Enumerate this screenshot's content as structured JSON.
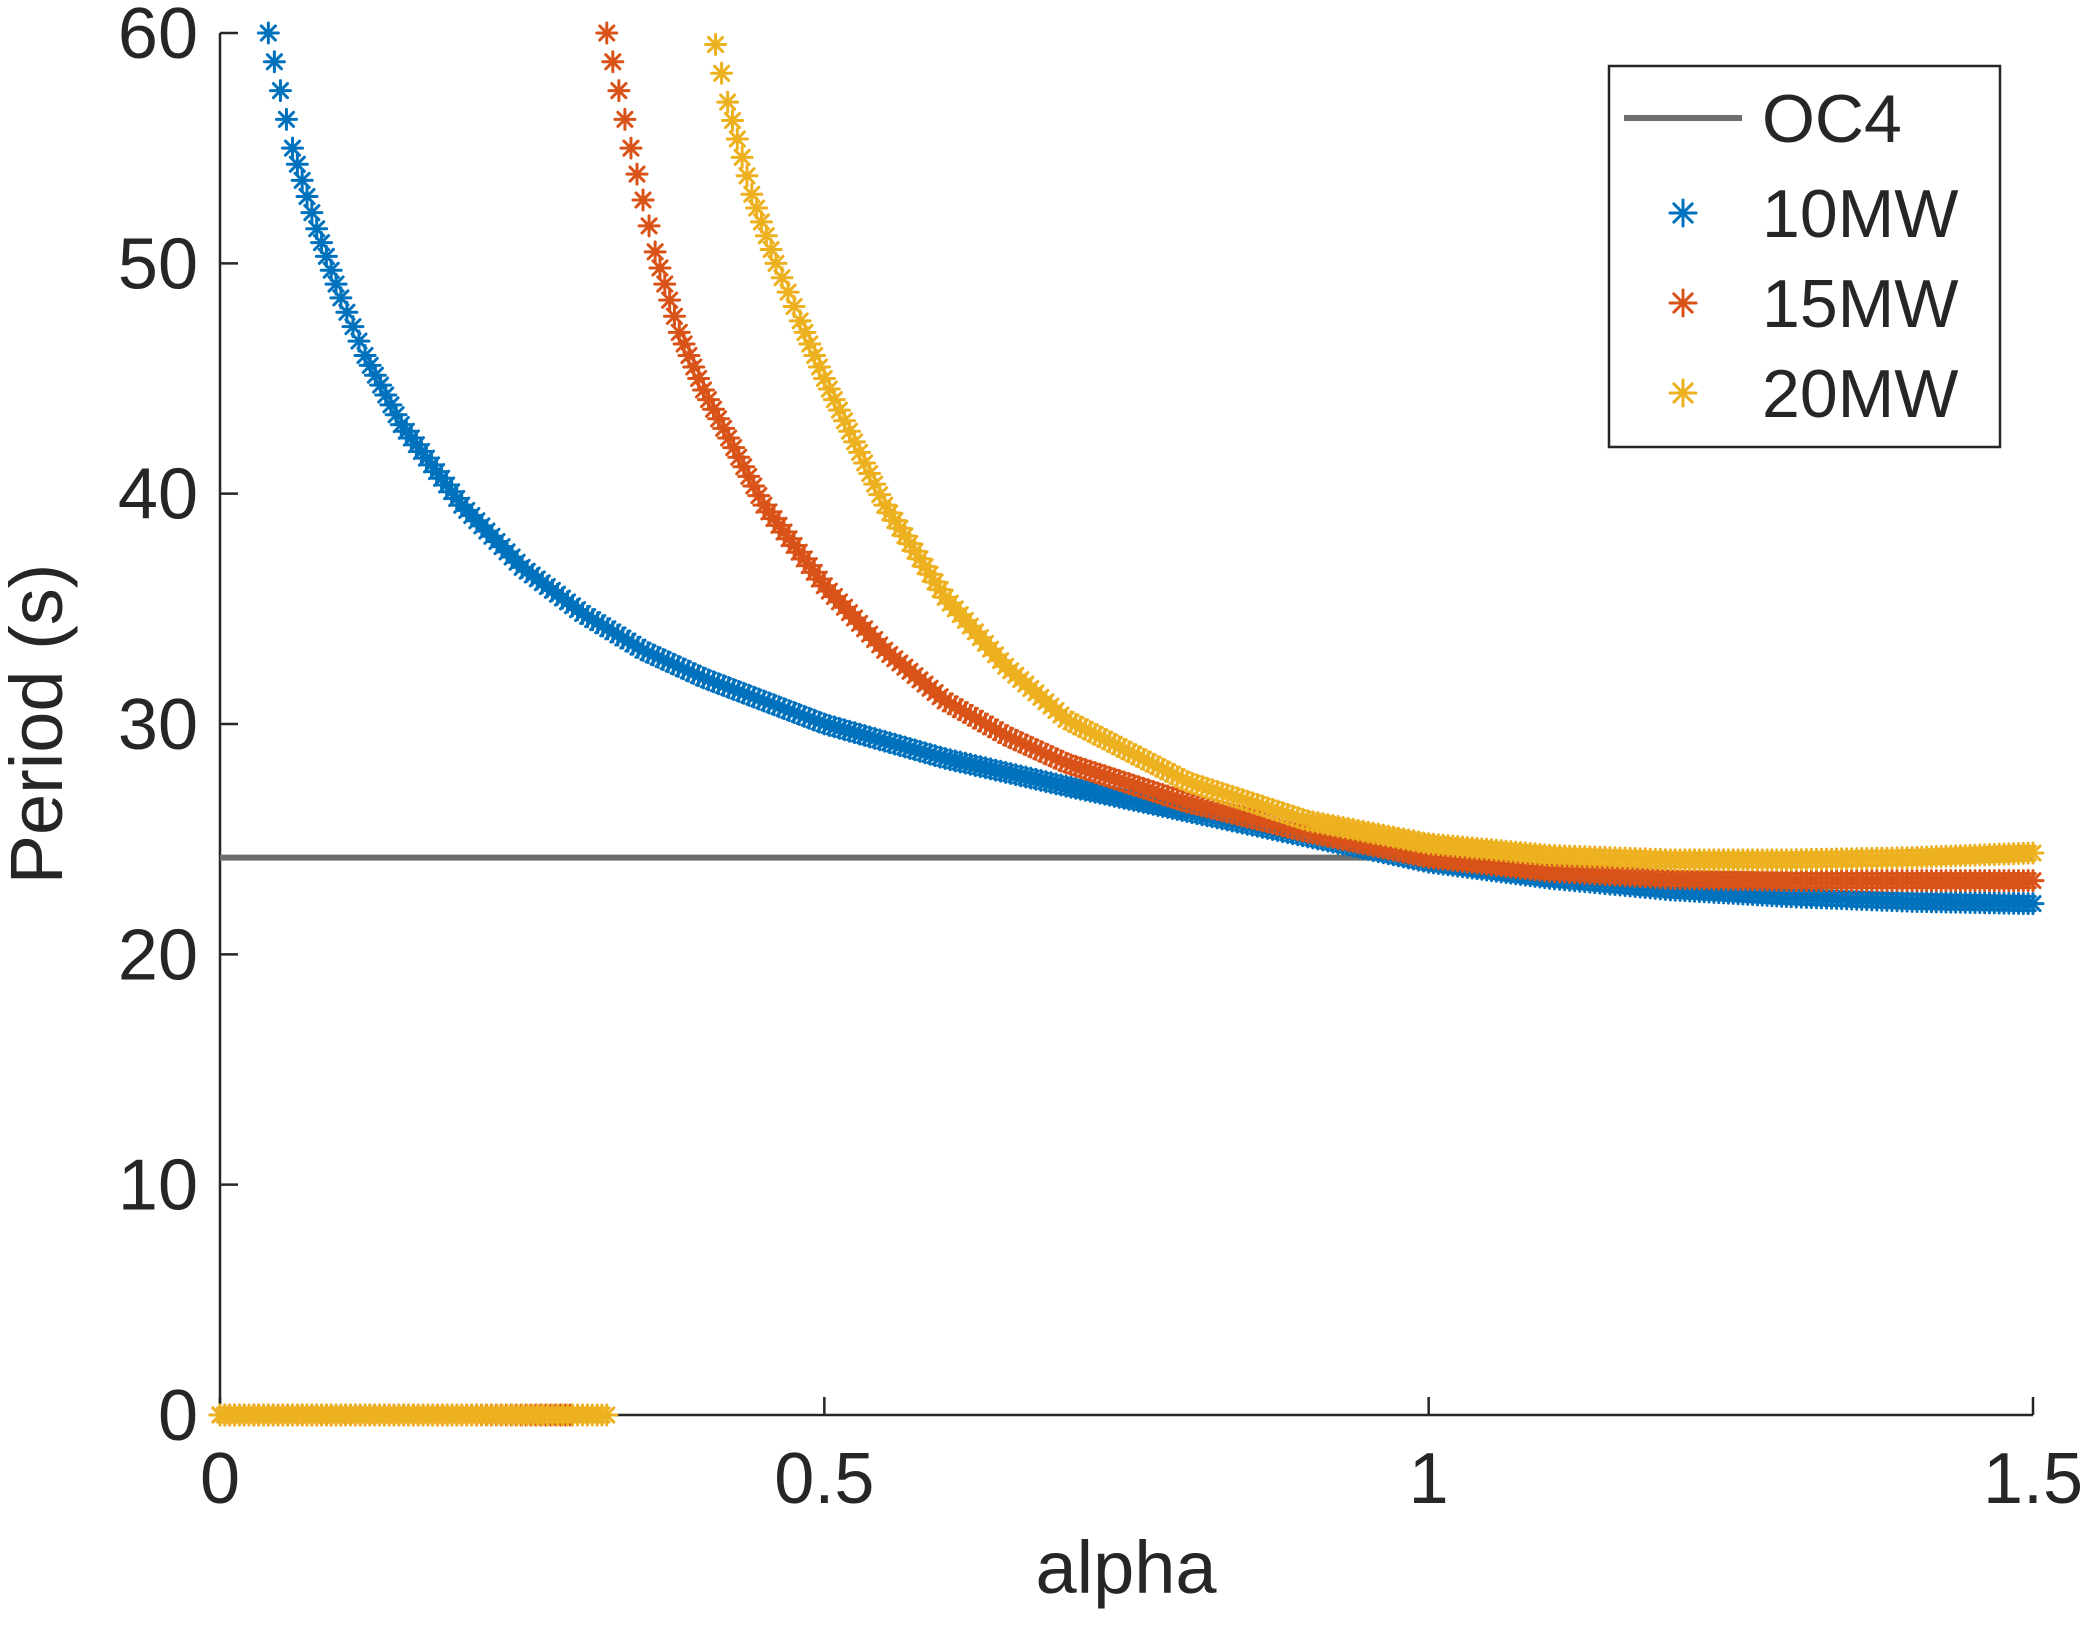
{
  "chart_data": {
    "type": "scatter",
    "title": "",
    "xlabel": "alpha",
    "ylabel": "Period (s)",
    "xlim": [
      0,
      1.5
    ],
    "ylim": [
      0,
      60
    ],
    "xticks": [
      "0",
      "0.5",
      "1",
      "1.5"
    ],
    "yticks": [
      "0",
      "10",
      "20",
      "30",
      "40",
      "50",
      "60"
    ],
    "grid": false,
    "legend_position": "top-right",
    "reference_line": {
      "name": "OC4",
      "y": 24.2,
      "color": "#6e6e6e"
    },
    "series": [
      {
        "name": "10MW",
        "color": "#0072BD",
        "marker": "*",
        "points": [
          [
            0.04,
            60.0
          ],
          [
            0.05,
            57.5
          ],
          [
            0.06,
            55.0
          ],
          [
            0.08,
            51.5
          ],
          [
            0.1,
            48.5
          ],
          [
            0.12,
            46.0
          ],
          [
            0.15,
            43.0
          ],
          [
            0.2,
            39.5
          ],
          [
            0.25,
            36.8
          ],
          [
            0.3,
            34.8
          ],
          [
            0.35,
            33.2
          ],
          [
            0.4,
            32.0
          ],
          [
            0.5,
            30.0
          ],
          [
            0.6,
            28.5
          ],
          [
            0.7,
            27.3
          ],
          [
            0.8,
            26.2
          ],
          [
            0.9,
            25.1
          ],
          [
            1.0,
            24.0
          ],
          [
            1.1,
            23.3
          ],
          [
            1.2,
            22.8
          ],
          [
            1.3,
            22.5
          ],
          [
            1.4,
            22.3
          ],
          [
            1.5,
            22.2
          ]
        ]
      },
      {
        "name": "15MW",
        "color": "#D95319",
        "marker": "*",
        "points": [
          [
            0.0,
            0
          ],
          [
            0.1,
            0
          ],
          [
            0.2,
            0
          ],
          [
            0.29,
            0
          ],
          [
            0.32,
            60.0
          ],
          [
            0.33,
            57.5
          ],
          [
            0.34,
            55.0
          ],
          [
            0.36,
            50.5
          ],
          [
            0.38,
            47.0
          ],
          [
            0.4,
            44.5
          ],
          [
            0.45,
            39.5
          ],
          [
            0.5,
            36.0
          ],
          [
            0.55,
            33.2
          ],
          [
            0.6,
            31.0
          ],
          [
            0.65,
            29.5
          ],
          [
            0.7,
            28.3
          ],
          [
            0.8,
            26.6
          ],
          [
            0.9,
            25.3
          ],
          [
            1.0,
            24.2
          ],
          [
            1.1,
            23.6
          ],
          [
            1.2,
            23.3
          ],
          [
            1.3,
            23.2
          ],
          [
            1.4,
            23.2
          ],
          [
            1.5,
            23.2
          ]
        ]
      },
      {
        "name": "20MW",
        "color": "#EDB120",
        "marker": "*",
        "points": [
          [
            0.0,
            0
          ],
          [
            0.1,
            0
          ],
          [
            0.2,
            0
          ],
          [
            0.3,
            0
          ],
          [
            0.32,
            0
          ],
          [
            0.41,
            59.5
          ],
          [
            0.42,
            57.0
          ],
          [
            0.44,
            53.0
          ],
          [
            0.46,
            50.0
          ],
          [
            0.48,
            47.5
          ],
          [
            0.5,
            45.0
          ],
          [
            0.55,
            39.5
          ],
          [
            0.6,
            35.5
          ],
          [
            0.65,
            32.5
          ],
          [
            0.7,
            30.2
          ],
          [
            0.8,
            27.5
          ],
          [
            0.9,
            25.8
          ],
          [
            1.0,
            24.8
          ],
          [
            1.1,
            24.3
          ],
          [
            1.2,
            24.1
          ],
          [
            1.3,
            24.1
          ],
          [
            1.4,
            24.2
          ],
          [
            1.5,
            24.4
          ]
        ]
      }
    ]
  }
}
